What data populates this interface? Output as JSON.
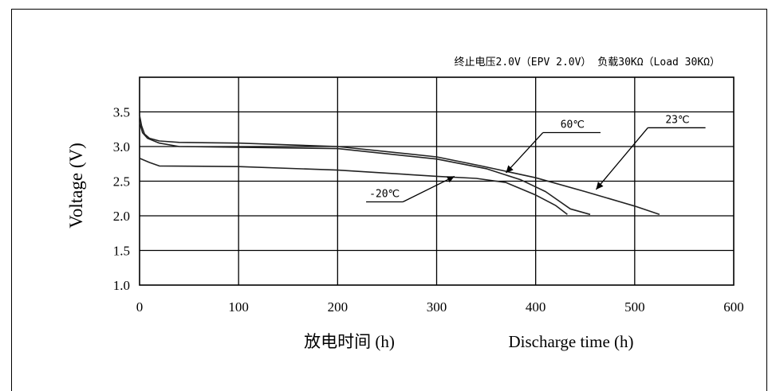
{
  "chart_data": {
    "type": "line",
    "title": "终止电压2.0V（EPV 2.0V） 负载30KΩ（Load 30KΩ）",
    "ylabel": "Voltage (V)",
    "xlabel_cn": "放电时间 (h)",
    "xlabel_en": "Discharge time (h)",
    "xlim": [
      0,
      600
    ],
    "ylim": [
      1.0,
      4.0
    ],
    "x_ticks": [
      0,
      100,
      200,
      300,
      400,
      500,
      600
    ],
    "x_tick_labels": [
      "0",
      "100",
      "200",
      "300",
      "400",
      "500",
      "600"
    ],
    "y_ticks": [
      1.0,
      1.5,
      2.0,
      2.5,
      3.0,
      3.5
    ],
    "y_tick_labels": [
      "1.0",
      "1.5",
      "2.0",
      "2.5",
      "3.0",
      "3.5"
    ],
    "grid": true,
    "series": [
      {
        "name": "23℃",
        "points": [
          [
            0,
            3.45
          ],
          [
            2,
            3.3
          ],
          [
            5,
            3.18
          ],
          [
            10,
            3.12
          ],
          [
            20,
            3.08
          ],
          [
            40,
            3.06
          ],
          [
            100,
            3.05
          ],
          [
            200,
            3.0
          ],
          [
            300,
            2.85
          ],
          [
            345,
            2.72
          ],
          [
            400,
            2.55
          ],
          [
            450,
            2.35
          ],
          [
            500,
            2.14
          ],
          [
            525,
            2.02
          ]
        ]
      },
      {
        "name": "60℃",
        "points": [
          [
            0,
            3.35
          ],
          [
            3,
            3.2
          ],
          [
            8,
            3.12
          ],
          [
            20,
            3.05
          ],
          [
            40,
            3.0
          ],
          [
            100,
            2.99
          ],
          [
            200,
            2.97
          ],
          [
            300,
            2.82
          ],
          [
            350,
            2.68
          ],
          [
            385,
            2.52
          ],
          [
            410,
            2.35
          ],
          [
            435,
            2.1
          ],
          [
            455,
            2.02
          ]
        ]
      },
      {
        "name": "-20℃",
        "points": [
          [
            0,
            2.83
          ],
          [
            5,
            2.8
          ],
          [
            10,
            2.77
          ],
          [
            20,
            2.72
          ],
          [
            100,
            2.71
          ],
          [
            200,
            2.66
          ],
          [
            300,
            2.57
          ],
          [
            340,
            2.54
          ],
          [
            370,
            2.48
          ],
          [
            400,
            2.3
          ],
          [
            420,
            2.15
          ],
          [
            432,
            2.02
          ]
        ]
      }
    ],
    "annotations": [
      {
        "label": "60℃",
        "text_at": [
          425,
          3.27
        ],
        "arrow_to": [
          370,
          2.62
        ]
      },
      {
        "label": "23℃",
        "text_at": [
          531,
          3.34
        ],
        "arrow_to": [
          461,
          2.38
        ]
      },
      {
        "label": "-20℃",
        "text_at": [
          232,
          2.27
        ],
        "arrow_to": [
          318,
          2.57
        ]
      }
    ]
  }
}
